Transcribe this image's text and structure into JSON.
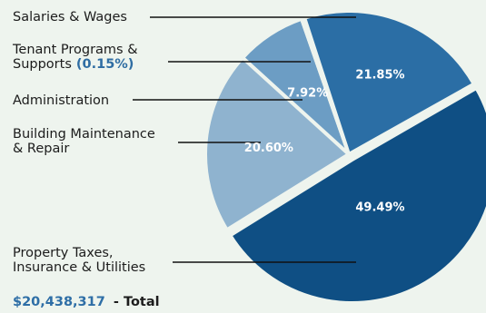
{
  "chart_data": {
    "type": "pie",
    "slices": [
      {
        "label": "Property Taxes, Insurance & Utilities",
        "label_lines": [
          "Property Taxes,",
          "Insurance & Utilities"
        ],
        "value": 49.49,
        "value_label": "49.49%",
        "color": "#0f4f84"
      },
      {
        "label": "Building Maintenance & Repair",
        "label_lines": [
          "Building Maintenance",
          "& Repair"
        ],
        "value": 20.6,
        "value_label": "20.60%",
        "color": "#8fb3cf"
      },
      {
        "label": "Administration",
        "label_lines": [
          "Administration"
        ],
        "value": 7.92,
        "value_label": "7.92%",
        "color": "#6c9dc4"
      },
      {
        "label": "Tenant Programs & Supports",
        "label_lines": [
          "Tenant Programs &",
          "Supports"
        ],
        "value": 0.15,
        "value_label": "",
        "inline_value": "(0.15%)",
        "color": "#6c9dc4"
      },
      {
        "label": "Salaries & Wages",
        "label_lines": [
          "Salaries & Wages"
        ],
        "value": 21.85,
        "value_label": "21.85%",
        "color": "#2b6ea5"
      }
    ],
    "total_value": "$20,438,317",
    "total_label": "- Total"
  }
}
